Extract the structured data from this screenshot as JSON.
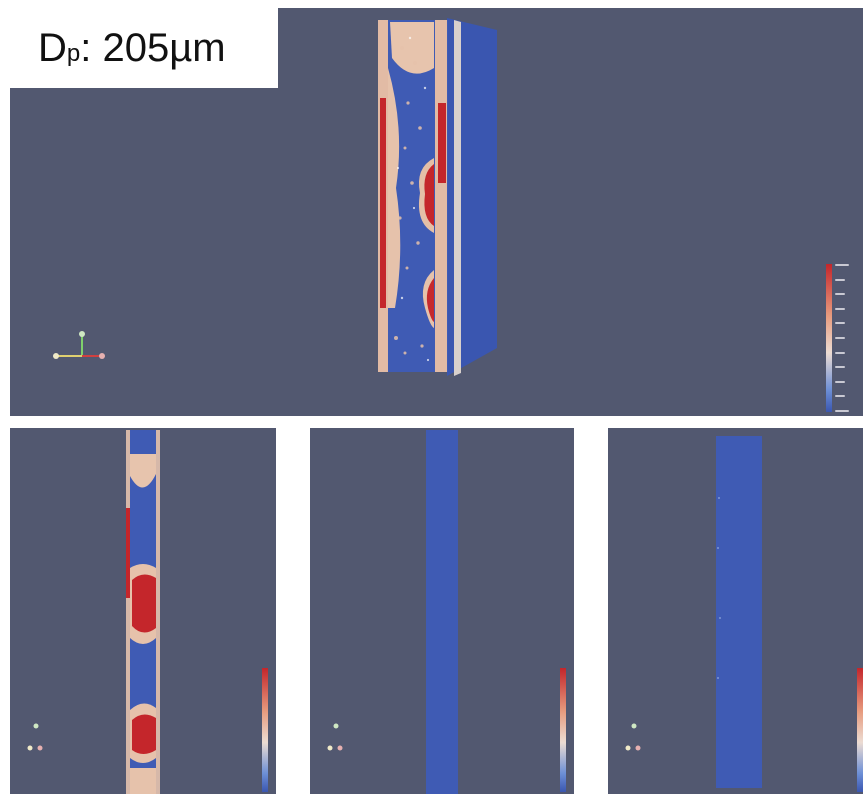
{
  "main_view": {
    "particle_diameter_symbol": "D",
    "particle_diameter_subscript": "p",
    "particle_diameter_value": ": 205µm"
  },
  "colors": {
    "background": "#525870",
    "low": "#3a56b0",
    "mid": "#e8c3ae",
    "high": "#c4262b"
  },
  "icons": [
    "orientation-axes-icon",
    "color-legend-icon"
  ],
  "views": [
    "main-3d-view",
    "bottom-view-a",
    "bottom-view-b",
    "bottom-view-c"
  ]
}
